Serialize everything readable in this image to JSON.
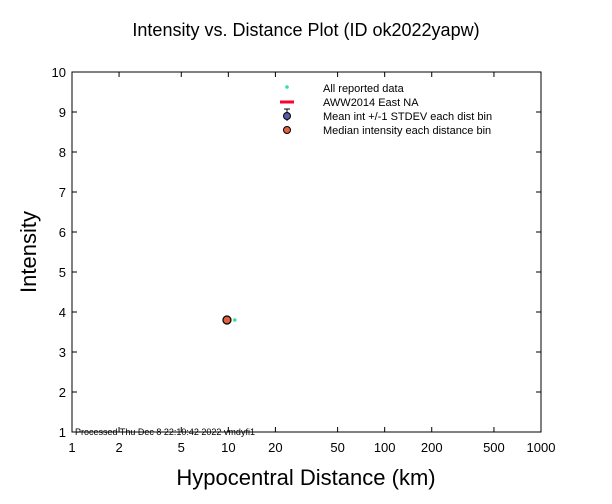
{
  "chart_data": {
    "type": "scatter",
    "title": "Intensity vs. Distance Plot (ID ok2022yapw)",
    "xlabel": "Hypocentral Distance (km)",
    "ylabel": "Intensity",
    "xscale": "log",
    "xlim": [
      1,
      1000
    ],
    "ylim": [
      1,
      10
    ],
    "x_ticks": [
      1,
      2,
      5,
      10,
      20,
      50,
      100,
      200,
      500,
      1000
    ],
    "x_tick_labels": [
      "1",
      "2",
      "5",
      "10",
      "20",
      "50",
      "100",
      "200",
      "500",
      "1000"
    ],
    "y_ticks": [
      1,
      2,
      3,
      4,
      5,
      6,
      7,
      8,
      9,
      10
    ],
    "y_tick_labels": [
      "1",
      "2",
      "3",
      "4",
      "5",
      "6",
      "7",
      "8",
      "9",
      "10"
    ],
    "legend_position": "top-right",
    "legend": [
      {
        "label": "All reported data",
        "symbol": "dot",
        "color": "#33e0a0"
      },
      {
        "label": "AWW2014 East NA",
        "symbol": "line",
        "color": "#ff0033"
      },
      {
        "label": "Mean int +/-1 STDEV each dist bin",
        "symbol": "circle-errorbar",
        "color": "#5a5aa8"
      },
      {
        "label": "Median intensity each distance bin",
        "symbol": "circle",
        "color": "#e06040"
      }
    ],
    "series": [
      {
        "name": "All reported data",
        "kind": "scatter",
        "color": "#33e0a0",
        "points": [
          {
            "x": 11,
            "y": 3.8
          }
        ]
      },
      {
        "name": "Mean int +/-1 STDEV each dist bin",
        "kind": "circle",
        "color": "#5a5aa8",
        "points": [
          {
            "x": 9.8,
            "y": 3.8,
            "std": 0
          }
        ]
      },
      {
        "name": "Median intensity each distance bin",
        "kind": "circle",
        "color": "#e06040",
        "points": [
          {
            "x": 9.8,
            "y": 3.8
          }
        ]
      }
    ],
    "footer": "Processed Thu Dec  8 22:10:42 2022 vmdyfi1"
  }
}
